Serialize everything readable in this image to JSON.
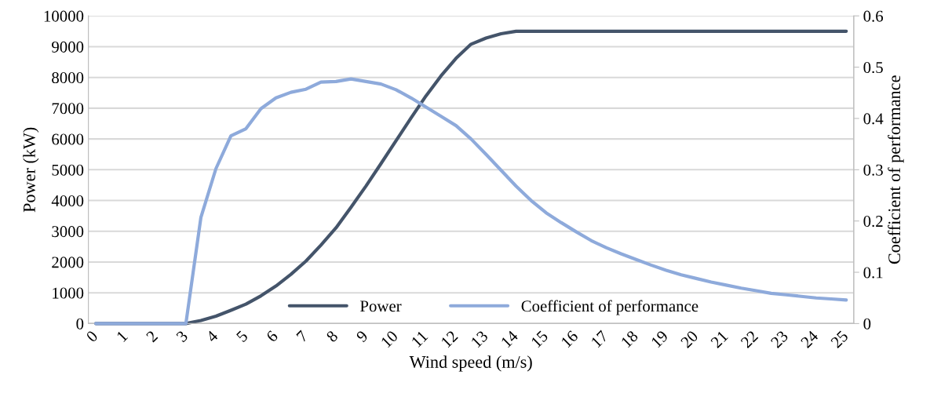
{
  "chart_data": {
    "type": "line",
    "xlabel": "Wind speed (m/s)",
    "ylabel": "Power (kW)",
    "y2label": "Coefficient of performance",
    "x": [
      0,
      0.5,
      1,
      1.5,
      2,
      2.5,
      3,
      3.5,
      4,
      4.5,
      5,
      5.5,
      6,
      6.5,
      7,
      7.5,
      8,
      8.5,
      9,
      9.5,
      10,
      10.5,
      11,
      11.5,
      12,
      12.5,
      13,
      13.5,
      14,
      14.5,
      15,
      15.5,
      16,
      16.5,
      17,
      17.5,
      18,
      18.5,
      19,
      19.5,
      20,
      20.5,
      21,
      21.5,
      22,
      22.5,
      23,
      23.5,
      24,
      24.5,
      25
    ],
    "xlim": [
      -0.25,
      25.25
    ],
    "xticks": [
      0,
      1,
      2,
      3,
      4,
      5,
      6,
      7,
      8,
      9,
      10,
      11,
      12,
      13,
      14,
      15,
      16,
      17,
      18,
      19,
      20,
      21,
      22,
      23,
      24,
      25
    ],
    "ylim": [
      0,
      10000
    ],
    "yticks": [
      0,
      1000,
      2000,
      3000,
      4000,
      5000,
      6000,
      7000,
      8000,
      9000,
      10000
    ],
    "y2lim": [
      0,
      0.6
    ],
    "y2ticks": [
      0,
      0.1,
      0.2,
      0.3,
      0.4,
      0.5,
      0.6
    ],
    "grid": "y",
    "legend": "bottom",
    "line_style": "solid",
    "marker": "none",
    "series": [
      {
        "name": "Power",
        "color": "#44546a",
        "values": [
          0,
          0,
          0,
          0,
          0,
          0,
          0,
          100,
          240,
          430,
          630,
          900,
          1220,
          1600,
          2030,
          2550,
          3110,
          3780,
          4470,
          5200,
          5940,
          6680,
          7400,
          8050,
          8620,
          9080,
          9280,
          9420,
          9500,
          9500,
          9500,
          9500,
          9500,
          9500,
          9500,
          9500,
          9500,
          9500,
          9500,
          9500,
          9500,
          9500,
          9500,
          9500,
          9500,
          9500,
          9500,
          9500,
          9500,
          9500,
          9500
        ]
      },
      {
        "name": "Coefficient of performance",
        "color": "#8eaadb",
        "axis": "y2",
        "values": [
          0,
          0,
          0,
          0,
          0,
          0,
          0,
          0.207,
          0.302,
          0.366,
          0.38,
          0.419,
          0.44,
          0.451,
          0.457,
          0.471,
          0.472,
          0.477,
          0.472,
          0.467,
          0.456,
          0.44,
          0.422,
          0.404,
          0.386,
          0.36,
          0.33,
          0.299,
          0.268,
          0.24,
          0.216,
          0.197,
          0.179,
          0.162,
          0.148,
          0.136,
          0.125,
          0.114,
          0.104,
          0.095,
          0.088,
          0.081,
          0.075,
          0.069,
          0.064,
          0.059,
          0.056,
          0.053,
          0.05,
          0.048,
          0.046
        ]
      }
    ]
  }
}
